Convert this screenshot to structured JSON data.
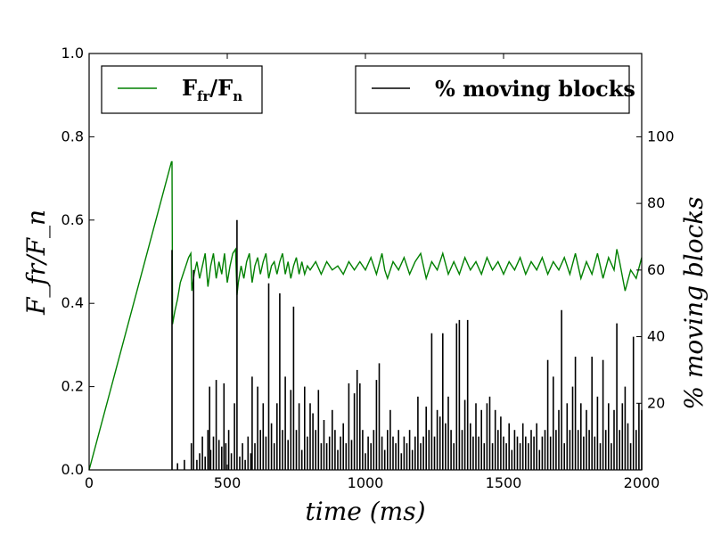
{
  "chart_data": {
    "type": "line",
    "title": "",
    "xlabel": "time (ms)",
    "ylabel_left": "F_fr/F_n",
    "ylabel_right": "% moving blocks",
    "xlim": [
      0,
      2000
    ],
    "ylim_left": [
      0,
      1.0
    ],
    "ylim_right": [
      0,
      125
    ],
    "x_ticks": [
      0,
      500,
      1000,
      1500,
      2000
    ],
    "x_tick_labels": [
      "0",
      "500",
      "1000",
      "1500",
      "2000"
    ],
    "y_left_ticks": [
      0,
      0.2,
      0.4,
      0.6,
      0.8,
      1.0
    ],
    "y_left_tick_labels": [
      "0.0",
      "0.2",
      "0.4",
      "0.6",
      "0.8",
      "1.0"
    ],
    "y_right_ticks": [
      20,
      40,
      60,
      80,
      100
    ],
    "y_right_tick_labels": [
      "20",
      "40",
      "60",
      "80",
      "100"
    ],
    "grid": false,
    "colors": {
      "friction": "#008000",
      "moving": "#000000",
      "frame": "#000000"
    },
    "legend": [
      {
        "label": "F_fr/F_n",
        "rich": {
          "base": "F",
          "sub1": "fr",
          "mid": "/F",
          "sub2": "n"
        },
        "color": "#008000",
        "placement": "top-left"
      },
      {
        "label": "% moving blocks",
        "color": "#000000",
        "placement": "top-right"
      }
    ],
    "series": [
      {
        "name": "F_fr/F_n",
        "axis": "left",
        "color": "#008000",
        "x": [
          0,
          298,
          300,
          302,
          310,
          320,
          330,
          340,
          350,
          360,
          368,
          372,
          380,
          390,
          400,
          410,
          420,
          430,
          440,
          450,
          460,
          470,
          480,
          490,
          500,
          510,
          520,
          530,
          535,
          540,
          550,
          560,
          570,
          580,
          590,
          600,
          610,
          620,
          630,
          640,
          650,
          660,
          670,
          680,
          690,
          700,
          710,
          720,
          730,
          740,
          750,
          760,
          770,
          780,
          790,
          800,
          820,
          840,
          860,
          880,
          900,
          920,
          940,
          960,
          980,
          1000,
          1020,
          1040,
          1060,
          1070,
          1080,
          1100,
          1120,
          1140,
          1160,
          1180,
          1200,
          1220,
          1240,
          1260,
          1280,
          1300,
          1320,
          1340,
          1360,
          1380,
          1400,
          1420,
          1440,
          1460,
          1480,
          1500,
          1520,
          1540,
          1560,
          1580,
          1600,
          1620,
          1640,
          1660,
          1680,
          1700,
          1720,
          1740,
          1760,
          1780,
          1800,
          1820,
          1840,
          1860,
          1880,
          1900,
          1910,
          1920,
          1940,
          1960,
          1980,
          2000
        ],
        "values": [
          0.0,
          0.74,
          0.74,
          0.35,
          0.38,
          0.41,
          0.45,
          0.47,
          0.49,
          0.51,
          0.52,
          0.43,
          0.47,
          0.5,
          0.46,
          0.49,
          0.52,
          0.44,
          0.49,
          0.52,
          0.46,
          0.5,
          0.47,
          0.52,
          0.45,
          0.49,
          0.52,
          0.53,
          0.42,
          0.45,
          0.49,
          0.46,
          0.5,
          0.52,
          0.45,
          0.49,
          0.51,
          0.47,
          0.5,
          0.52,
          0.46,
          0.49,
          0.5,
          0.47,
          0.5,
          0.52,
          0.47,
          0.5,
          0.46,
          0.49,
          0.51,
          0.47,
          0.5,
          0.47,
          0.49,
          0.48,
          0.5,
          0.47,
          0.5,
          0.48,
          0.49,
          0.47,
          0.5,
          0.48,
          0.5,
          0.48,
          0.51,
          0.47,
          0.52,
          0.48,
          0.46,
          0.5,
          0.48,
          0.51,
          0.47,
          0.5,
          0.52,
          0.46,
          0.5,
          0.48,
          0.52,
          0.47,
          0.5,
          0.47,
          0.51,
          0.48,
          0.5,
          0.47,
          0.51,
          0.48,
          0.5,
          0.47,
          0.5,
          0.48,
          0.51,
          0.47,
          0.5,
          0.48,
          0.51,
          0.47,
          0.5,
          0.48,
          0.51,
          0.47,
          0.52,
          0.46,
          0.5,
          0.47,
          0.52,
          0.46,
          0.51,
          0.48,
          0.53,
          0.5,
          0.43,
          0.48,
          0.46,
          0.51
        ]
      },
      {
        "name": "% moving blocks",
        "axis": "right",
        "color": "#000000",
        "spikes": [
          [
            300,
            66
          ],
          [
            320,
            2
          ],
          [
            345,
            3
          ],
          [
            370,
            8
          ],
          [
            378,
            60
          ],
          [
            390,
            3
          ],
          [
            400,
            5
          ],
          [
            410,
            10
          ],
          [
            420,
            4
          ],
          [
            430,
            12
          ],
          [
            436,
            25
          ],
          [
            440,
            6
          ],
          [
            450,
            10
          ],
          [
            460,
            27
          ],
          [
            470,
            9
          ],
          [
            480,
            7
          ],
          [
            488,
            26
          ],
          [
            495,
            8
          ],
          [
            505,
            12
          ],
          [
            515,
            5
          ],
          [
            526,
            20
          ],
          [
            535,
            75
          ],
          [
            545,
            4
          ],
          [
            555,
            8
          ],
          [
            565,
            3
          ],
          [
            575,
            10
          ],
          [
            585,
            5
          ],
          [
            590,
            28
          ],
          [
            600,
            8
          ],
          [
            610,
            25
          ],
          [
            620,
            12
          ],
          [
            630,
            20
          ],
          [
            640,
            10
          ],
          [
            650,
            56
          ],
          [
            660,
            14
          ],
          [
            670,
            8
          ],
          [
            680,
            20
          ],
          [
            690,
            53
          ],
          [
            700,
            12
          ],
          [
            710,
            28
          ],
          [
            720,
            9
          ],
          [
            730,
            24
          ],
          [
            740,
            49
          ],
          [
            750,
            12
          ],
          [
            760,
            20
          ],
          [
            770,
            6
          ],
          [
            780,
            25
          ],
          [
            790,
            10
          ],
          [
            800,
            20
          ],
          [
            810,
            17
          ],
          [
            820,
            12
          ],
          [
            830,
            24
          ],
          [
            840,
            8
          ],
          [
            850,
            15
          ],
          [
            860,
            8
          ],
          [
            870,
            10
          ],
          [
            880,
            18
          ],
          [
            890,
            12
          ],
          [
            900,
            6
          ],
          [
            910,
            10
          ],
          [
            920,
            14
          ],
          [
            930,
            8
          ],
          [
            940,
            26
          ],
          [
            950,
            9
          ],
          [
            960,
            23
          ],
          [
            970,
            30
          ],
          [
            980,
            26
          ],
          [
            990,
            12
          ],
          [
            1000,
            5
          ],
          [
            1010,
            10
          ],
          [
            1020,
            8
          ],
          [
            1030,
            12
          ],
          [
            1040,
            27
          ],
          [
            1050,
            32
          ],
          [
            1060,
            10
          ],
          [
            1070,
            6
          ],
          [
            1080,
            12
          ],
          [
            1090,
            18
          ],
          [
            1100,
            10
          ],
          [
            1110,
            8
          ],
          [
            1120,
            12
          ],
          [
            1130,
            5
          ],
          [
            1140,
            10
          ],
          [
            1150,
            8
          ],
          [
            1160,
            12
          ],
          [
            1170,
            6
          ],
          [
            1180,
            10
          ],
          [
            1190,
            22
          ],
          [
            1200,
            8
          ],
          [
            1210,
            10
          ],
          [
            1220,
            19
          ],
          [
            1230,
            12
          ],
          [
            1240,
            41
          ],
          [
            1250,
            10
          ],
          [
            1260,
            18
          ],
          [
            1270,
            16
          ],
          [
            1280,
            41
          ],
          [
            1290,
            14
          ],
          [
            1300,
            22
          ],
          [
            1310,
            12
          ],
          [
            1320,
            8
          ],
          [
            1330,
            44
          ],
          [
            1340,
            45
          ],
          [
            1350,
            12
          ],
          [
            1360,
            21
          ],
          [
            1370,
            45
          ],
          [
            1380,
            14
          ],
          [
            1390,
            10
          ],
          [
            1400,
            20
          ],
          [
            1410,
            10
          ],
          [
            1420,
            18
          ],
          [
            1430,
            8
          ],
          [
            1440,
            20
          ],
          [
            1450,
            22
          ],
          [
            1460,
            8
          ],
          [
            1470,
            18
          ],
          [
            1480,
            12
          ],
          [
            1490,
            16
          ],
          [
            1500,
            10
          ],
          [
            1510,
            8
          ],
          [
            1520,
            14
          ],
          [
            1530,
            6
          ],
          [
            1540,
            12
          ],
          [
            1550,
            10
          ],
          [
            1560,
            8
          ],
          [
            1570,
            14
          ],
          [
            1580,
            10
          ],
          [
            1590,
            8
          ],
          [
            1600,
            12
          ],
          [
            1610,
            10
          ],
          [
            1620,
            14
          ],
          [
            1630,
            6
          ],
          [
            1640,
            10
          ],
          [
            1650,
            12
          ],
          [
            1660,
            33
          ],
          [
            1670,
            10
          ],
          [
            1680,
            28
          ],
          [
            1690,
            12
          ],
          [
            1700,
            18
          ],
          [
            1710,
            48
          ],
          [
            1720,
            8
          ],
          [
            1730,
            20
          ],
          [
            1740,
            12
          ],
          [
            1750,
            25
          ],
          [
            1760,
            34
          ],
          [
            1770,
            12
          ],
          [
            1780,
            20
          ],
          [
            1790,
            10
          ],
          [
            1800,
            18
          ],
          [
            1810,
            12
          ],
          [
            1820,
            34
          ],
          [
            1830,
            10
          ],
          [
            1840,
            22
          ],
          [
            1850,
            8
          ],
          [
            1860,
            33
          ],
          [
            1870,
            12
          ],
          [
            1880,
            20
          ],
          [
            1890,
            8
          ],
          [
            1900,
            18
          ],
          [
            1910,
            44
          ],
          [
            1920,
            12
          ],
          [
            1930,
            20
          ],
          [
            1940,
            25
          ],
          [
            1950,
            14
          ],
          [
            1960,
            8
          ],
          [
            1970,
            40
          ],
          [
            1980,
            12
          ],
          [
            1990,
            20
          ],
          [
            2000,
            18
          ]
        ]
      }
    ]
  }
}
